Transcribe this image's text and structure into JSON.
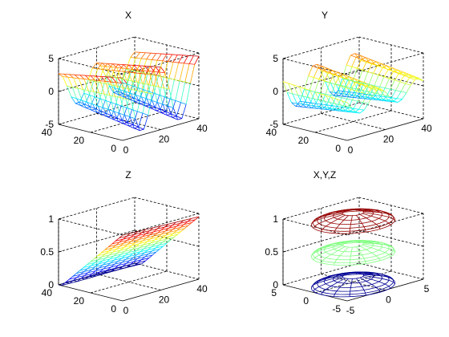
{
  "figure": {
    "colormap": "jet",
    "background": "#ffffff",
    "box_color": "#000000"
  },
  "chart_data": [
    {
      "type": "surface-mesh",
      "title": "X",
      "zticks": [
        "5",
        "0",
        "-5"
      ],
      "yticks": [
        "40",
        "20",
        "0"
      ],
      "xticks": [
        "0",
        "20",
        "40"
      ],
      "xlim": [
        0,
        40
      ],
      "ylim": [
        0,
        40
      ],
      "zlim": [
        -5,
        5
      ],
      "surface": "wavy sheet, amplitude about 5, two periods along x",
      "grid": true
    },
    {
      "type": "surface-mesh",
      "title": "Y",
      "zticks": [
        "5",
        "0",
        "-5"
      ],
      "yticks": [
        "40",
        "20",
        "0"
      ],
      "xticks": [
        "0",
        "20",
        "40"
      ],
      "xlim": [
        0,
        40
      ],
      "ylim": [
        0,
        40
      ],
      "zlim": [
        -5,
        5
      ],
      "surface": "wavy sheet, amplitude about 3, two periods along x",
      "grid": true
    },
    {
      "type": "surface-mesh",
      "title": "Z",
      "zticks": [
        "1",
        "0.5",
        "0"
      ],
      "yticks": [
        "40",
        "20",
        "0"
      ],
      "xticks": [
        "0",
        "20",
        "40"
      ],
      "xlim": [
        0,
        40
      ],
      "ylim": [
        0,
        40
      ],
      "zlim": [
        0,
        1
      ],
      "surface": "inclined plane rising linearly from z 0 to 1",
      "grid": true
    },
    {
      "type": "surface-mesh",
      "title": "X,Y,Z",
      "zticks": [
        "1",
        "0.5",
        "0"
      ],
      "yticks": [
        "5",
        "0",
        "-5"
      ],
      "xticks": [
        "-5",
        "0",
        "5"
      ],
      "xlim": [
        -5,
        5
      ],
      "ylim": [
        -5,
        5
      ],
      "zlim": [
        0,
        1
      ],
      "surface": "three stacked disc-shaped surfaces at z about 0, 0.5, 1",
      "grid": true
    }
  ]
}
